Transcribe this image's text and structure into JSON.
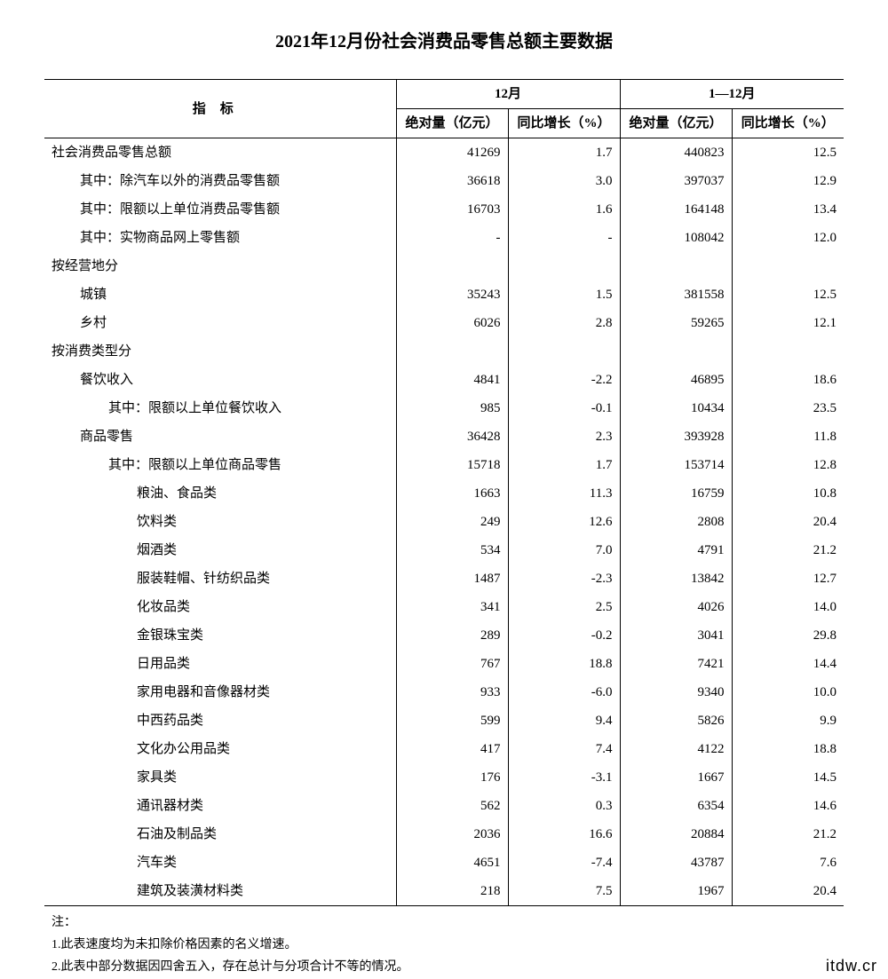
{
  "title": "2021年12月份社会消费品零售总额主要数据",
  "header": {
    "indicator": "指标",
    "period_dec": "12月",
    "period_year": "1—12月",
    "abs": "绝对量（亿元）",
    "growth": "同比增长（%）"
  },
  "rows": [
    {
      "label": "社会消费品零售总额",
      "indent": 0,
      "dec_abs": "41269",
      "dec_growth": "1.7",
      "year_abs": "440823",
      "year_growth": "12.5"
    },
    {
      "label": "其中：除汽车以外的消费品零售额",
      "indent": 1,
      "dec_abs": "36618",
      "dec_growth": "3.0",
      "year_abs": "397037",
      "year_growth": "12.9"
    },
    {
      "label": "其中：限额以上单位消费品零售额",
      "indent": 1,
      "dec_abs": "16703",
      "dec_growth": "1.6",
      "year_abs": "164148",
      "year_growth": "13.4"
    },
    {
      "label": "其中：实物商品网上零售额",
      "indent": 1,
      "dec_abs": "-",
      "dec_growth": "-",
      "year_abs": "108042",
      "year_growth": "12.0"
    },
    {
      "label": "按经营地分",
      "indent": 0,
      "dec_abs": "",
      "dec_growth": "",
      "year_abs": "",
      "year_growth": ""
    },
    {
      "label": "城镇",
      "indent": 1,
      "dec_abs": "35243",
      "dec_growth": "1.5",
      "year_abs": "381558",
      "year_growth": "12.5"
    },
    {
      "label": "乡村",
      "indent": 1,
      "dec_abs": "6026",
      "dec_growth": "2.8",
      "year_abs": "59265",
      "year_growth": "12.1"
    },
    {
      "label": "按消费类型分",
      "indent": 0,
      "dec_abs": "",
      "dec_growth": "",
      "year_abs": "",
      "year_growth": ""
    },
    {
      "label": "餐饮收入",
      "indent": 1,
      "dec_abs": "4841",
      "dec_growth": "-2.2",
      "year_abs": "46895",
      "year_growth": "18.6"
    },
    {
      "label": "其中：限额以上单位餐饮收入",
      "indent": 2,
      "dec_abs": "985",
      "dec_growth": "-0.1",
      "year_abs": "10434",
      "year_growth": "23.5"
    },
    {
      "label": "商品零售",
      "indent": 1,
      "dec_abs": "36428",
      "dec_growth": "2.3",
      "year_abs": "393928",
      "year_growth": "11.8"
    },
    {
      "label": "其中：限额以上单位商品零售",
      "indent": 2,
      "dec_abs": "15718",
      "dec_growth": "1.7",
      "year_abs": "153714",
      "year_growth": "12.8"
    },
    {
      "label": "粮油、食品类",
      "indent": 3,
      "dec_abs": "1663",
      "dec_growth": "11.3",
      "year_abs": "16759",
      "year_growth": "10.8"
    },
    {
      "label": "饮料类",
      "indent": 3,
      "dec_abs": "249",
      "dec_growth": "12.6",
      "year_abs": "2808",
      "year_growth": "20.4"
    },
    {
      "label": "烟酒类",
      "indent": 3,
      "dec_abs": "534",
      "dec_growth": "7.0",
      "year_abs": "4791",
      "year_growth": "21.2"
    },
    {
      "label": "服装鞋帽、针纺织品类",
      "indent": 3,
      "dec_abs": "1487",
      "dec_growth": "-2.3",
      "year_abs": "13842",
      "year_growth": "12.7"
    },
    {
      "label": "化妆品类",
      "indent": 3,
      "dec_abs": "341",
      "dec_growth": "2.5",
      "year_abs": "4026",
      "year_growth": "14.0"
    },
    {
      "label": "金银珠宝类",
      "indent": 3,
      "dec_abs": "289",
      "dec_growth": "-0.2",
      "year_abs": "3041",
      "year_growth": "29.8"
    },
    {
      "label": "日用品类",
      "indent": 3,
      "dec_abs": "767",
      "dec_growth": "18.8",
      "year_abs": "7421",
      "year_growth": "14.4"
    },
    {
      "label": "家用电器和音像器材类",
      "indent": 3,
      "dec_abs": "933",
      "dec_growth": "-6.0",
      "year_abs": "9340",
      "year_growth": "10.0"
    },
    {
      "label": "中西药品类",
      "indent": 3,
      "dec_abs": "599",
      "dec_growth": "9.4",
      "year_abs": "5826",
      "year_growth": "9.9"
    },
    {
      "label": "文化办公用品类",
      "indent": 3,
      "dec_abs": "417",
      "dec_growth": "7.4",
      "year_abs": "4122",
      "year_growth": "18.8"
    },
    {
      "label": "家具类",
      "indent": 3,
      "dec_abs": "176",
      "dec_growth": "-3.1",
      "year_abs": "1667",
      "year_growth": "14.5"
    },
    {
      "label": "通讯器材类",
      "indent": 3,
      "dec_abs": "562",
      "dec_growth": "0.3",
      "year_abs": "6354",
      "year_growth": "14.6"
    },
    {
      "label": "石油及制品类",
      "indent": 3,
      "dec_abs": "2036",
      "dec_growth": "16.6",
      "year_abs": "20884",
      "year_growth": "21.2"
    },
    {
      "label": "汽车类",
      "indent": 3,
      "dec_abs": "4651",
      "dec_growth": "-7.4",
      "year_abs": "43787",
      "year_growth": "7.6"
    },
    {
      "label": "建筑及装潢材料类",
      "indent": 3,
      "dec_abs": "218",
      "dec_growth": "7.5",
      "year_abs": "1967",
      "year_growth": "20.4"
    }
  ],
  "notes": {
    "head": "注：",
    "n1": "1.此表速度均为未扣除价格因素的名义增速。",
    "n2": "2.此表中部分数据因四舍五入，存在总计与分项合计不等的情况。"
  },
  "watermark": "itdw.cr",
  "style": {
    "type": "table",
    "page_bg": "#ffffff",
    "text_color": "#000000",
    "border_color": "#000000",
    "title_fontsize": 20,
    "body_fontsize": 15,
    "note_fontsize": 14,
    "columns": [
      "指标",
      "12月 绝对量（亿元）",
      "12月 同比增长（%）",
      "1—12月 绝对量（亿元）",
      "1—12月 同比增长（%）"
    ],
    "numeric_align": "right",
    "header_border_weight": 1.5,
    "body_border_weight": 1.0
  }
}
